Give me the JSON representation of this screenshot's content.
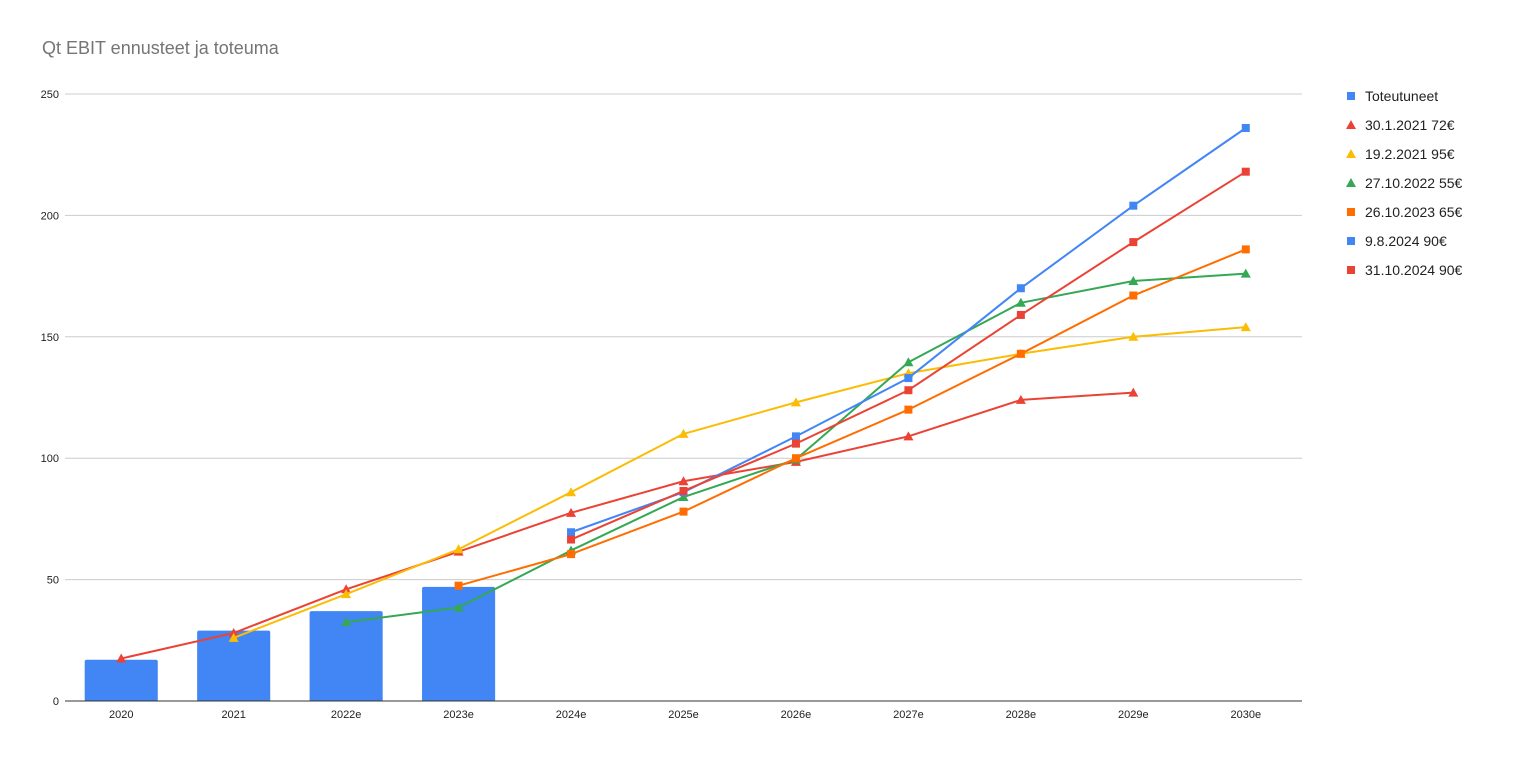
{
  "chart_data": {
    "type": "bar",
    "title": "Qt EBIT ennusteet ja toteuma",
    "xlabel": "",
    "ylabel": "",
    "categories": [
      "2020",
      "2021",
      "2022e",
      "2023e",
      "2024e",
      "2025e",
      "2026e",
      "2027e",
      "2028e",
      "2029e",
      "2030e"
    ],
    "ylim": [
      0,
      250
    ],
    "yticks": [
      0,
      50,
      100,
      150,
      200,
      250
    ],
    "grid": true,
    "legend_position": "right",
    "series": [
      {
        "name": "Toteutuneet",
        "kind": "bar",
        "marker": "square",
        "color": "#4285f4",
        "values": [
          17,
          29,
          37,
          47,
          null,
          null,
          null,
          null,
          null,
          null,
          null
        ]
      },
      {
        "name": "30.1.2021 72€",
        "kind": "line",
        "marker": "triangle",
        "color": "#ea4335",
        "values": [
          17.5,
          28,
          46,
          61.5,
          77.5,
          90.5,
          98.5,
          109,
          124,
          127,
          null
        ]
      },
      {
        "name": "19.2.2021 95€",
        "kind": "line",
        "marker": "triangle",
        "color": "#fbbc04",
        "values": [
          null,
          26,
          44,
          62.5,
          86,
          110,
          123,
          135,
          143,
          150,
          154
        ]
      },
      {
        "name": "27.10.2022 55€",
        "kind": "line",
        "marker": "triangle",
        "color": "#34a853",
        "values": [
          null,
          null,
          32.5,
          38.5,
          62,
          84,
          99.5,
          139.5,
          164,
          173,
          176
        ]
      },
      {
        "name": "26.10.2023 65€",
        "kind": "line",
        "marker": "square",
        "color": "#ff6d01",
        "values": [
          null,
          null,
          null,
          47.5,
          60.5,
          78,
          100,
          120,
          143,
          167,
          186
        ]
      },
      {
        "name": "9.8.2024 90€",
        "kind": "line",
        "marker": "square",
        "color": "#4285f4",
        "values": [
          null,
          null,
          null,
          null,
          69.5,
          86,
          109,
          133,
          170,
          204,
          236
        ]
      },
      {
        "name": "31.10.2024 90€",
        "kind": "line",
        "marker": "square",
        "color": "#ea4335",
        "values": [
          null,
          null,
          null,
          null,
          66.5,
          86.5,
          106,
          128,
          159,
          189,
          218
        ]
      }
    ]
  }
}
